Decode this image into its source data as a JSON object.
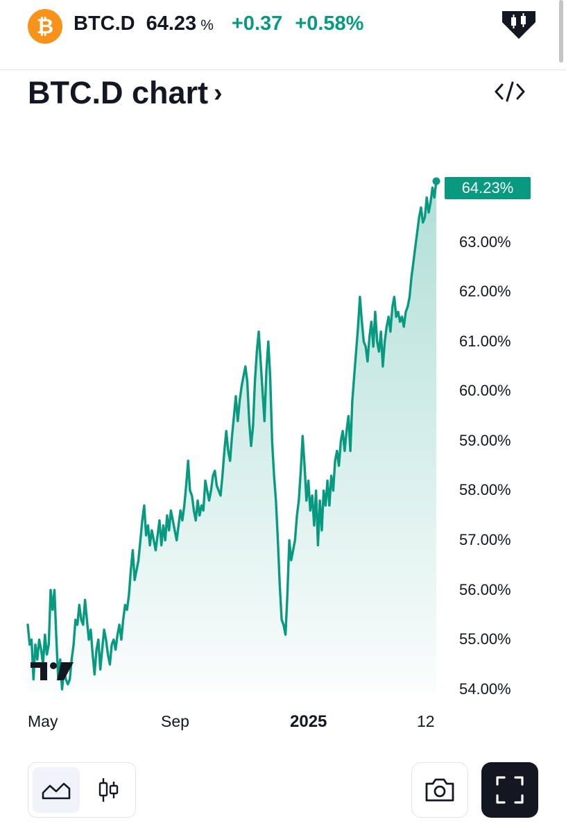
{
  "header": {
    "symbol": "BTC.D",
    "price": "64.23",
    "price_unit": "%",
    "change_abs": "+0.37",
    "change_pct": "+0.58%",
    "coin_icon": "bitcoin-icon",
    "badge_icon": "tradingview-candles-badge-icon"
  },
  "chart_title": "BTC.D chart",
  "colors": {
    "accent": "#089981",
    "coin": "#f7931a",
    "text": "#131722"
  },
  "chart_data": {
    "type": "area",
    "title": "",
    "xlabel": "",
    "ylabel": "",
    "x_tick_labels": [
      "May",
      "Sep",
      "2025",
      "12"
    ],
    "y_tick_labels": [
      "63.00%",
      "62.00%",
      "61.00%",
      "60.00%",
      "59.00%",
      "58.00%",
      "57.00%",
      "56.00%",
      "55.00%",
      "54.00%"
    ],
    "ylim": [
      53.95,
      65.2
    ],
    "last_value_label": "64.23%",
    "grid": false,
    "legend": "none",
    "series": [
      {
        "values": [
          55.3,
          54.9,
          55.0,
          54.2,
          54.9,
          54.6,
          55.0,
          54.8,
          54.5,
          55.1,
          54.7,
          54.9,
          56.0,
          55.6,
          56.0,
          55.0,
          54.2,
          54.6,
          54.0,
          54.4,
          54.2,
          54.1,
          54.2,
          54.6,
          54.9,
          55.4,
          55.3,
          55.7,
          55.4,
          55.3,
          55.8,
          55.4,
          55.0,
          55.2,
          54.7,
          54.3,
          54.8,
          55.0,
          54.4,
          54.8,
          55.2,
          55.0,
          54.7,
          54.5,
          54.9,
          55.0,
          54.8,
          55.1,
          55.3,
          55.0,
          55.4,
          55.7,
          55.6,
          55.9,
          56.4,
          56.8,
          56.2,
          56.4,
          56.6,
          57.0,
          57.4,
          57.7,
          57.1,
          57.3,
          56.9,
          57.2,
          57.0,
          56.8,
          57.1,
          57.4,
          56.9,
          57.3,
          57.0,
          57.5,
          57.2,
          57.6,
          57.4,
          57.2,
          57.0,
          57.3,
          57.6,
          57.4,
          57.7,
          58.1,
          58.6,
          58.0,
          57.9,
          57.6,
          57.4,
          57.8,
          57.5,
          57.7,
          57.6,
          58.2,
          58.0,
          57.8,
          58.0,
          58.3,
          58.4,
          58.1,
          58.0,
          57.9,
          58.3,
          58.8,
          59.2,
          58.8,
          58.6,
          59.1,
          59.5,
          59.9,
          59.4,
          59.8,
          60.1,
          60.3,
          60.5,
          60.2,
          59.4,
          58.9,
          59.3,
          60.2,
          60.8,
          61.2,
          60.6,
          60.0,
          59.4,
          60.4,
          61.0,
          60.3,
          59.0,
          58.3,
          57.8,
          57.0,
          56.1,
          55.4,
          55.3,
          55.1,
          55.9,
          57.0,
          56.6,
          56.8,
          57.0,
          57.5,
          57.8,
          58.4,
          59.1,
          58.5,
          57.8,
          58.2,
          57.6,
          57.9,
          57.3,
          58.0,
          56.9,
          57.8,
          57.2,
          58.0,
          57.7,
          58.2,
          57.7,
          58.3,
          58.0,
          58.6,
          58.8,
          58.5,
          59.0,
          59.2,
          58.8,
          59.2,
          59.5,
          58.8,
          59.8,
          60.3,
          60.8,
          61.3,
          61.9,
          61.4,
          61.0,
          60.9,
          60.6,
          61.1,
          61.4,
          60.9,
          61.6,
          61.0,
          60.8,
          61.2,
          60.5,
          61.0,
          61.3,
          61.5,
          61.2,
          61.7,
          61.9,
          61.5,
          61.6,
          61.4,
          61.5,
          61.3,
          61.6,
          61.7,
          61.9,
          62.3,
          62.6,
          62.9,
          63.2,
          63.5,
          63.7,
          63.4,
          63.5,
          63.9,
          63.6,
          63.8,
          64.1,
          63.9,
          64.23
        ]
      }
    ]
  },
  "controls": {
    "area_icon": "area-chart-icon",
    "candles_icon": "candlestick-icon",
    "camera_icon": "camera-icon",
    "fullscreen_icon": "fullscreen-icon",
    "embed_icon": "code-embed-icon"
  }
}
